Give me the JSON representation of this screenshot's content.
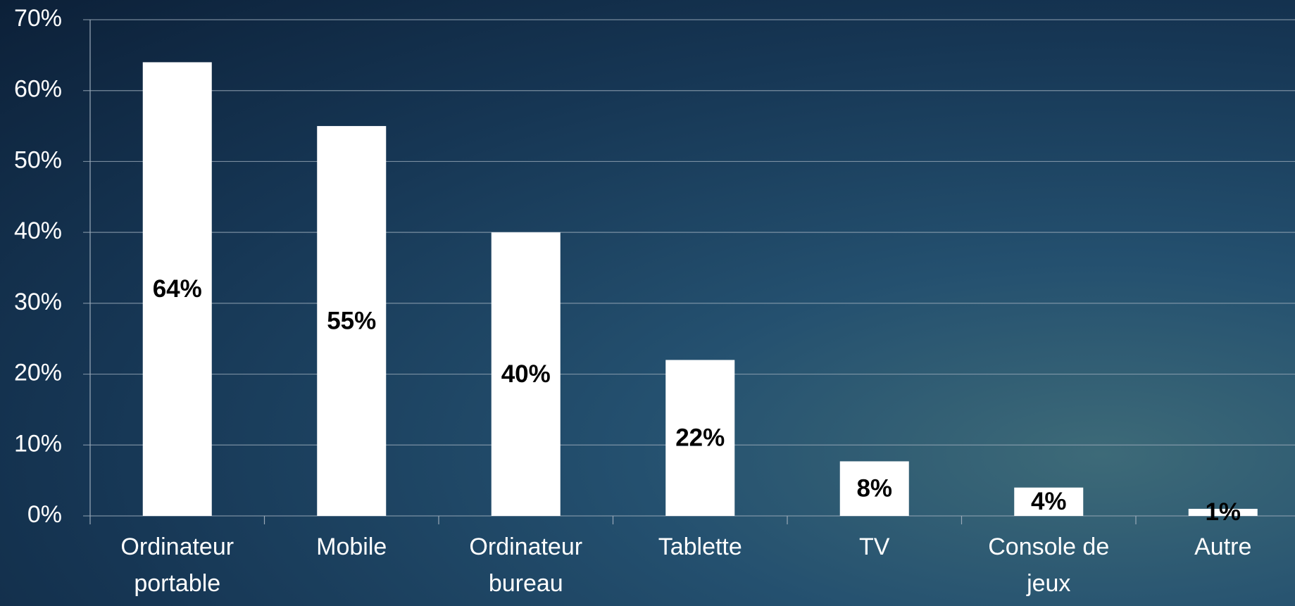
{
  "chart_data": {
    "type": "bar",
    "categories": [
      "Ordinateur portable",
      "Mobile",
      "Ordinateur bureau",
      "Tablette",
      "TV",
      "Console de jeux",
      "Autre"
    ],
    "values": [
      64,
      55,
      40,
      22,
      7.7,
      4,
      1
    ],
    "value_labels": [
      "64%",
      "55%",
      "40%",
      "22%",
      "8%",
      "4%",
      "1%"
    ],
    "color": "#ffffff",
    "ylim": [
      0,
      70
    ],
    "yticks": [
      {
        "value": 0,
        "label": "0%"
      },
      {
        "value": 10,
        "label": "10%"
      },
      {
        "value": 20,
        "label": "20%"
      },
      {
        "value": 30,
        "label": "30%"
      },
      {
        "value": 40,
        "label": "40%"
      },
      {
        "value": 50,
        "label": "50%"
      },
      {
        "value": 60,
        "label": "60%"
      },
      {
        "value": 70,
        "label": "70%"
      }
    ],
    "grid": true
  }
}
